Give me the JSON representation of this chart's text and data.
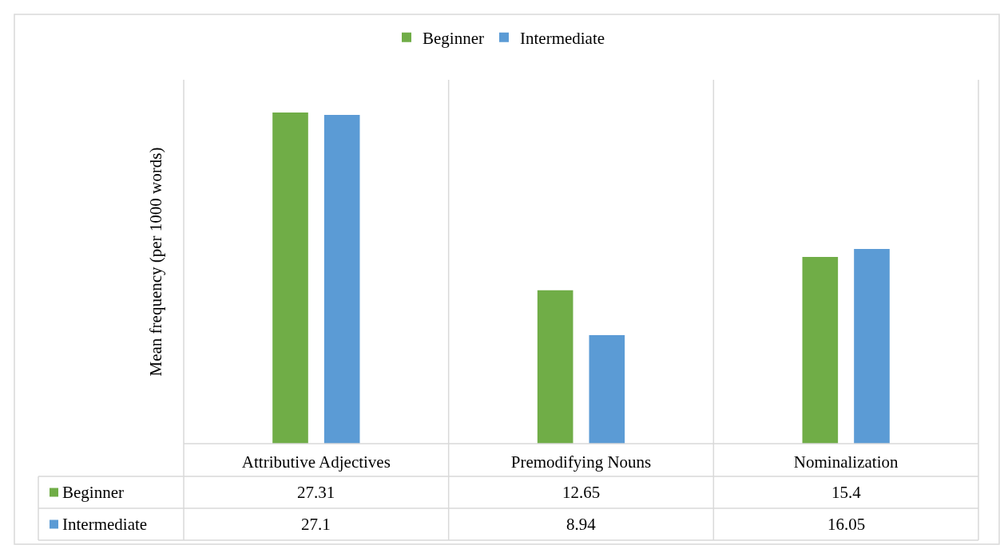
{
  "chart_data": {
    "type": "bar",
    "ylabel": "Mean frequency (per 1000 words)",
    "categories": [
      "Attributive Adjectives",
      "Premodifying Nouns",
      "Nominalization"
    ],
    "series": [
      {
        "name": "Beginner",
        "color": "#70ad47",
        "values": [
          27.31,
          12.65,
          15.4
        ]
      },
      {
        "name": "Intermediate",
        "color": "#5b9bd5",
        "values": [
          27.1,
          8.94,
          16.05
        ]
      }
    ],
    "ylim": [
      0,
      30
    ],
    "data_labels": true,
    "legend": "top"
  }
}
